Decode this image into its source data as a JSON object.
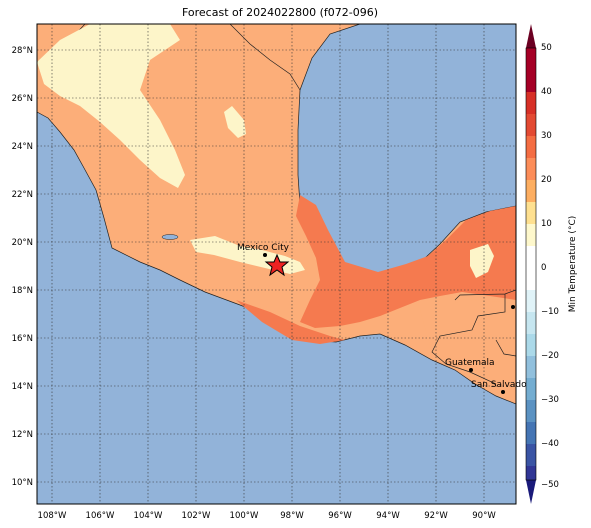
{
  "title": "Forecast of 2024022800 (f072-096)",
  "map": {
    "lon_range": [
      -108.5,
      -89.3
    ],
    "lat_range": [
      9.0,
      29.1
    ],
    "lat_ticks": [
      "28°N",
      "26°N",
      "24°N",
      "22°N",
      "20°N",
      "18°N",
      "16°N",
      "14°N",
      "12°N",
      "10°N"
    ],
    "lon_ticks": [
      "108°W",
      "106°W",
      "104°W",
      "102°W",
      "100°W",
      "98°W",
      "96°W",
      "94°W",
      "92°W",
      "90°W"
    ],
    "ocean_color": "#92b3d9",
    "gridlines": true,
    "marker": "star",
    "marker_color": "#ee2222"
  },
  "cities": [
    {
      "name": "Mexico City"
    },
    {
      "name": "Guatemala"
    },
    {
      "name": "San Salvador"
    }
  ],
  "colorbar": {
    "label": "Min Temperature (°C)",
    "ticks": [
      "50",
      "40",
      "30",
      "20",
      "10",
      "0",
      "−10",
      "−20",
      "−30",
      "−40",
      "−50"
    ],
    "colors": [
      "#6b0022",
      "#a50026",
      "#d73027",
      "#f46d43",
      "#fdae61",
      "#fef8cc",
      "#e0f3f8",
      "#abd9e9",
      "#74add1",
      "#4575b4",
      "#313695",
      "#1a1a7a"
    ]
  },
  "legend_fill": {
    "warm": "#fcae79",
    "warmer": "#f57a4f",
    "mild": "#fdf5c9"
  }
}
